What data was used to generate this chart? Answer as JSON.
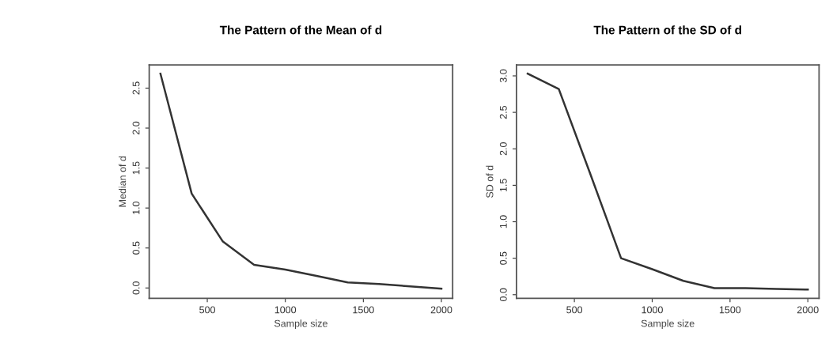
{
  "chart_data": [
    {
      "type": "line",
      "title": "The Pattern of the Mean of d",
      "xlabel": "Sample size",
      "ylabel": "Median of d",
      "x": [
        200,
        400,
        600,
        800,
        1000,
        1200,
        1400,
        1600,
        1800,
        2000
      ],
      "series": [
        {
          "color": "#333333",
          "values": [
            2.68,
            1.18,
            0.58,
            0.29,
            0.23,
            0.15,
            0.07,
            0.05,
            0.02,
            -0.01
          ]
        }
      ],
      "xlim": [
        128,
        2072
      ],
      "xticks": [
        500,
        1000,
        1500,
        2000
      ],
      "ylim": [
        -0.13,
        2.79
      ],
      "yticks": [
        {
          "value": 0,
          "label": "0.0"
        },
        0.5,
        {
          "value": 1,
          "label": "1.0"
        },
        1.5,
        {
          "value": 2,
          "label": "2.0"
        },
        2.5
      ],
      "grid": false,
      "legend": false,
      "marker": "none",
      "line_style": "solid"
    },
    {
      "type": "line",
      "title": "The Pattern of the SD of d",
      "xlabel": "Sample size",
      "ylabel": "SD of d",
      "x": [
        200,
        400,
        600,
        800,
        1000,
        1200,
        1400,
        1600,
        1800,
        2000
      ],
      "series": [
        {
          "color": "#333333",
          "values": [
            3.03,
            2.82,
            1.67,
            0.5,
            0.35,
            0.19,
            0.09,
            0.09,
            0.08,
            0.07
          ]
        }
      ],
      "xlim": [
        128,
        2072
      ],
      "xticks": [
        500,
        1000,
        1500,
        2000
      ],
      "ylim": [
        -0.05,
        3.15
      ],
      "yticks": [
        {
          "value": 0,
          "label": "0.0"
        },
        0.5,
        {
          "value": 1,
          "label": "1.0"
        },
        1.5,
        {
          "value": 2,
          "label": "2.0"
        },
        2.5,
        {
          "value": 3,
          "label": "3.0"
        }
      ],
      "grid": false,
      "legend": false,
      "marker": "none",
      "line_style": "solid"
    }
  ]
}
